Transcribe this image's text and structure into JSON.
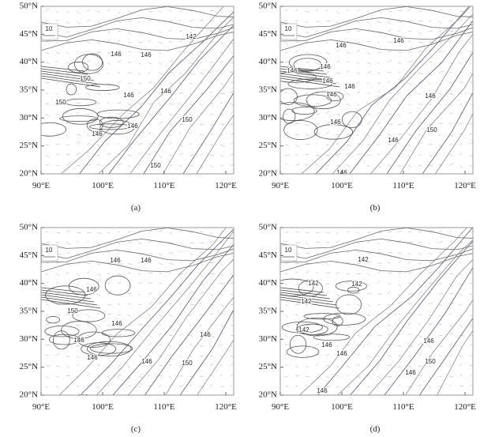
{
  "lon_labels": [
    "90°E",
    "100°E",
    "110°E",
    "120°E"
  ],
  "lat_labels": [
    "50°N",
    "45°N",
    "40°N",
    "35°N",
    "30°N",
    "25°N",
    "20°N"
  ],
  "panels": [
    {
      "label": "(a)",
      "vector_key": "10",
      "contour_labels": [
        "146",
        "150",
        "142",
        "146",
        "146",
        "150",
        "146",
        "146",
        "150",
        "146",
        "150"
      ]
    },
    {
      "label": "(b)",
      "vector_key": "10",
      "contour_labels": [
        "146",
        "146",
        "146",
        "146",
        "146",
        "146",
        "146",
        "146",
        "146",
        "150",
        "146",
        "146"
      ]
    },
    {
      "label": "(c)",
      "vector_key": "10",
      "contour_labels": [
        "146",
        "146",
        "146",
        "150",
        "146",
        "146",
        "146",
        "146",
        "150",
        "146",
        "146"
      ]
    },
    {
      "label": "(d)",
      "vector_key": "10",
      "contour_labels": [
        "142",
        "142",
        "142",
        "142",
        "142",
        "146",
        "146",
        "146",
        "150",
        "146",
        "146"
      ]
    }
  ]
}
